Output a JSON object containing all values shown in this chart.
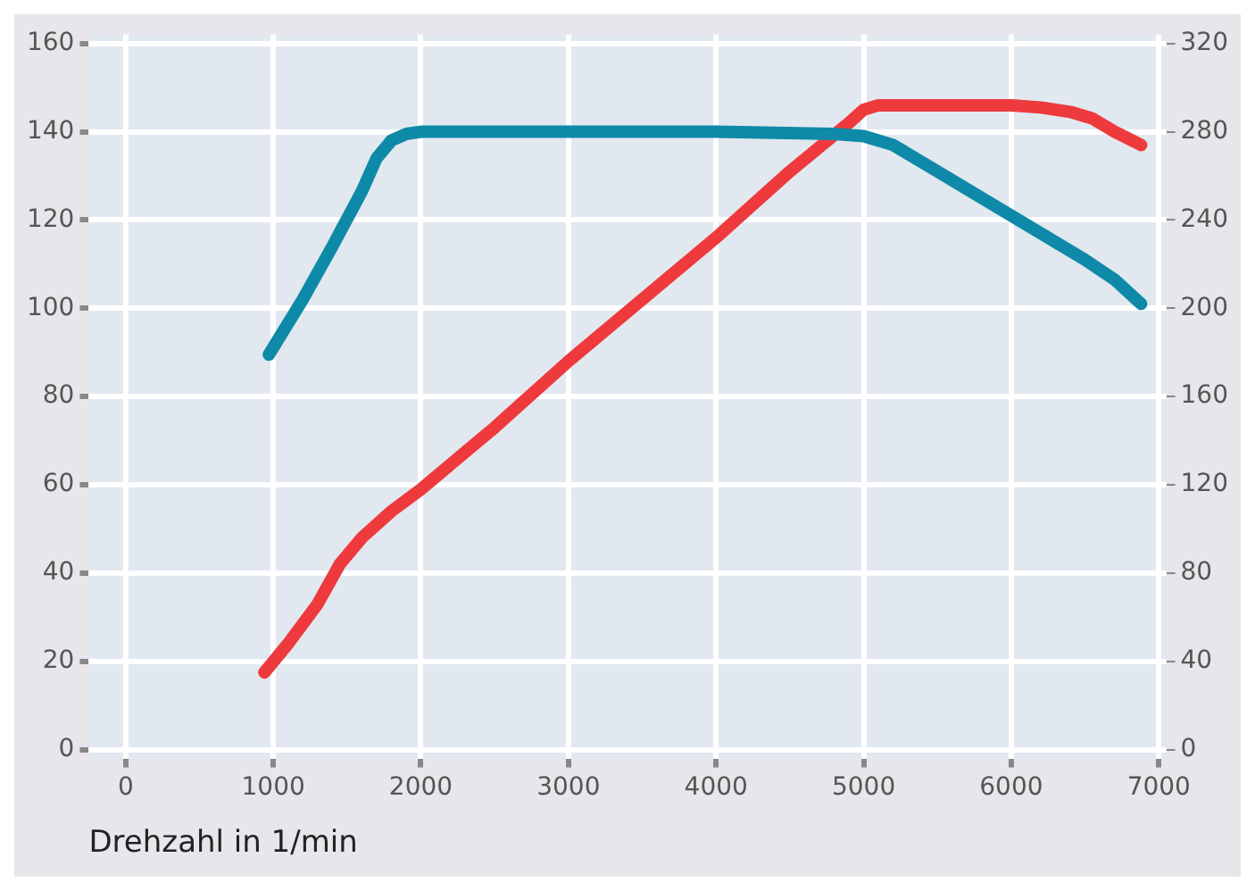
{
  "chart_data": {
    "type": "line",
    "xlabel": "Drehzahl in 1/min",
    "xlim": [
      -250,
      7050
    ],
    "xticks": [
      0,
      1000,
      2000,
      3000,
      4000,
      5000,
      6000,
      7000
    ],
    "ylim": [
      -2,
      162
    ],
    "yticks": [
      0,
      20,
      40,
      60,
      80,
      100,
      120,
      140,
      160
    ],
    "y2lim": [
      -4,
      324
    ],
    "y2ticks": [
      0,
      40,
      80,
      120,
      160,
      200,
      240,
      280,
      320
    ],
    "grid": true,
    "legend": false,
    "marker": "none",
    "line_style": "solid",
    "series": [
      {
        "color": "#0e8aa8",
        "axis": "y2",
        "x": [
          970,
          1200,
          1400,
          1600,
          1700,
          1800,
          1900,
          2000,
          3000,
          4000,
          4800,
          5000,
          5200,
          5500,
          6000,
          6500,
          6700,
          6880
        ],
        "values": [
          179,
          204,
          228,
          253,
          268,
          276,
          279,
          280,
          280,
          280,
          279,
          278,
          274,
          262,
          242,
          222,
          213,
          202
        ]
      },
      {
        "color": "#ee3a3c",
        "x": [
          940,
          1100,
          1300,
          1450,
          1600,
          1800,
          2000,
          2500,
          3000,
          3500,
          4000,
          4500,
          4900,
          5000,
          5100,
          5500,
          6000,
          6200,
          6400,
          6550,
          6700,
          6880
        ],
        "values": [
          17.5,
          24,
          33,
          42,
          48,
          54,
          59,
          73,
          88,
          102,
          116,
          131,
          142,
          145,
          146,
          146,
          146,
          145.5,
          144.5,
          143,
          140,
          137
        ]
      }
    ]
  }
}
